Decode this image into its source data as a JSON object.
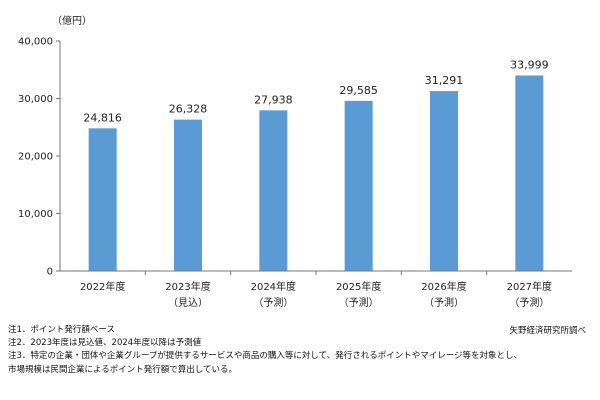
{
  "chart_data": {
    "type": "bar",
    "unit_label": "（億円）",
    "categories": [
      [
        "2022年度",
        ""
      ],
      [
        "2023年度",
        "（見込）"
      ],
      [
        "2024年度",
        "（予測）"
      ],
      [
        "2025年度",
        "（予測）"
      ],
      [
        "2026年度",
        "（予測）"
      ],
      [
        "2027年度",
        "（予測）"
      ]
    ],
    "values": [
      24816,
      26328,
      27938,
      29585,
      31291,
      33999
    ],
    "value_labels": [
      "24,816",
      "26,328",
      "27,938",
      "29,585",
      "31,291",
      "33,999"
    ],
    "ylim": [
      0,
      40000
    ],
    "yticks": [
      0,
      10000,
      20000,
      30000,
      40000
    ],
    "ytick_labels": [
      "0",
      "10,000",
      "20,000",
      "30,000",
      "40,000"
    ],
    "grid": false,
    "bar_color": "#5b9bd5"
  },
  "notes": [
    "注1．ポイント発行額ベース",
    "注2．2023年度は見込値、2024年度以降は予測値",
    "注3．特定の企業・団体や企業グループが提供するサービスや商品の購入等に対して、発行されるポイントやマイレージ等を対象とし、",
    "市場規模は民間企業によるポイント発行額で算出している。"
  ],
  "source": "矢野経済研究所調べ"
}
